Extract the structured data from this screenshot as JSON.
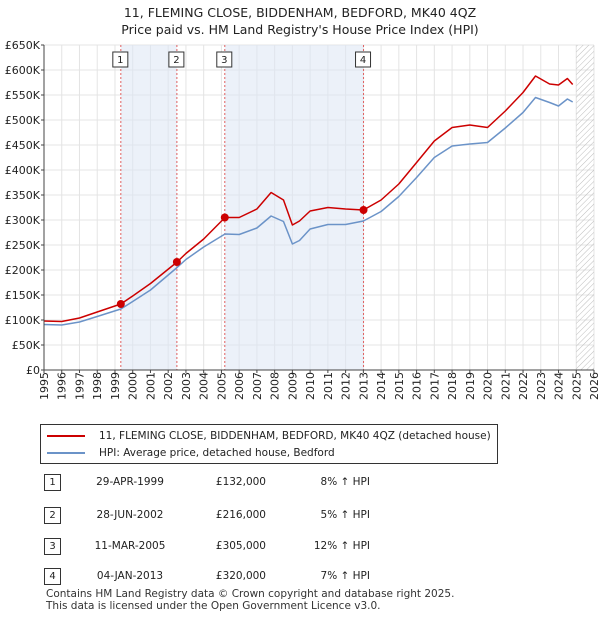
{
  "chart_data": {
    "type": "line",
    "title": "11, FLEMING CLOSE, BIDDENHAM, BEDFORD, MK40 4QZ",
    "subtitle": "Price paid vs. HM Land Registry's House Price Index (HPI)",
    "xlim": [
      1995,
      2026
    ],
    "ylim": [
      0,
      650000
    ],
    "x_ticks": [
      "1995",
      "1996",
      "1997",
      "1998",
      "1999",
      "2000",
      "2001",
      "2002",
      "2003",
      "2004",
      "2005",
      "2006",
      "2007",
      "2008",
      "2009",
      "2010",
      "2011",
      "2012",
      "2013",
      "2014",
      "2015",
      "2016",
      "2017",
      "2018",
      "2019",
      "2020",
      "2021",
      "2022",
      "2023",
      "2024",
      "2025",
      "2026"
    ],
    "y_ticks": [
      {
        "value": 0,
        "label": "£0"
      },
      {
        "value": 50000,
        "label": "£50K"
      },
      {
        "value": 100000,
        "label": "£100K"
      },
      {
        "value": 150000,
        "label": "£150K"
      },
      {
        "value": 200000,
        "label": "£200K"
      },
      {
        "value": 250000,
        "label": "£250K"
      },
      {
        "value": 300000,
        "label": "£300K"
      },
      {
        "value": 350000,
        "label": "£350K"
      },
      {
        "value": 400000,
        "label": "£400K"
      },
      {
        "value": 450000,
        "label": "£450K"
      },
      {
        "value": 500000,
        "label": "£500K"
      },
      {
        "value": 550000,
        "label": "£550K"
      },
      {
        "value": 600000,
        "label": "£600K"
      },
      {
        "value": 650000,
        "label": "£650K"
      }
    ],
    "future_from": 2025.0,
    "series": [
      {
        "name": "11, FLEMING CLOSE, BIDDENHAM, BEDFORD, MK40 4QZ (detached house)",
        "color": "#cc0000",
        "points": [
          [
            1995.0,
            98000
          ],
          [
            1996.0,
            97000
          ],
          [
            1997.0,
            104000
          ],
          [
            1998.0,
            116000
          ],
          [
            1999.33,
            132000
          ],
          [
            2000.0,
            148000
          ],
          [
            2001.0,
            173000
          ],
          [
            2002.5,
            216000
          ],
          [
            2003.0,
            233000
          ],
          [
            2004.0,
            262000
          ],
          [
            2005.2,
            305000
          ],
          [
            2006.0,
            305000
          ],
          [
            2007.0,
            322000
          ],
          [
            2007.8,
            355000
          ],
          [
            2008.5,
            340000
          ],
          [
            2009.0,
            290000
          ],
          [
            2009.4,
            298000
          ],
          [
            2010.0,
            318000
          ],
          [
            2011.0,
            325000
          ],
          [
            2012.0,
            322000
          ],
          [
            2013.0,
            320000
          ],
          [
            2014.0,
            340000
          ],
          [
            2015.0,
            372000
          ],
          [
            2016.0,
            415000
          ],
          [
            2017.0,
            458000
          ],
          [
            2018.0,
            485000
          ],
          [
            2019.0,
            490000
          ],
          [
            2020.0,
            485000
          ],
          [
            2021.0,
            518000
          ],
          [
            2022.0,
            555000
          ],
          [
            2022.7,
            588000
          ],
          [
            2023.5,
            572000
          ],
          [
            2024.0,
            570000
          ],
          [
            2024.5,
            583000
          ],
          [
            2024.8,
            571000
          ]
        ]
      },
      {
        "name": "HPI: Average price, detached house, Bedford",
        "color": "#6b93c8",
        "points": [
          [
            1995.0,
            91000
          ],
          [
            1996.0,
            90000
          ],
          [
            1997.0,
            96000
          ],
          [
            1998.0,
            107000
          ],
          [
            1999.33,
            122000
          ],
          [
            2000.0,
            137000
          ],
          [
            2001.0,
            160000
          ],
          [
            2002.5,
            205000
          ],
          [
            2003.0,
            221000
          ],
          [
            2004.0,
            246000
          ],
          [
            2005.2,
            272000
          ],
          [
            2006.0,
            271000
          ],
          [
            2007.0,
            284000
          ],
          [
            2007.8,
            308000
          ],
          [
            2008.5,
            297000
          ],
          [
            2009.0,
            252000
          ],
          [
            2009.4,
            259000
          ],
          [
            2010.0,
            282000
          ],
          [
            2011.0,
            291000
          ],
          [
            2012.0,
            291000
          ],
          [
            2013.0,
            298000
          ],
          [
            2014.0,
            317000
          ],
          [
            2015.0,
            347000
          ],
          [
            2016.0,
            385000
          ],
          [
            2017.0,
            425000
          ],
          [
            2018.0,
            448000
          ],
          [
            2019.0,
            452000
          ],
          [
            2020.0,
            455000
          ],
          [
            2021.0,
            484000
          ],
          [
            2022.0,
            515000
          ],
          [
            2022.7,
            545000
          ],
          [
            2023.5,
            535000
          ],
          [
            2024.0,
            528000
          ],
          [
            2024.5,
            542000
          ],
          [
            2024.8,
            536000
          ]
        ]
      }
    ],
    "sale_markers": [
      {
        "label": "1",
        "x": 1999.33,
        "y": 132000
      },
      {
        "label": "2",
        "x": 2002.49,
        "y": 216000
      },
      {
        "label": "3",
        "x": 2005.19,
        "y": 305000
      },
      {
        "label": "4",
        "x": 2013.01,
        "y": 320000
      }
    ],
    "legend": [
      {
        "label": "11, FLEMING CLOSE, BIDDENHAM, BEDFORD, MK40 4QZ (detached house)",
        "color": "#cc0000"
      },
      {
        "label": "HPI: Average price, detached house, Bedford",
        "color": "#6b93c8"
      }
    ]
  },
  "sales": [
    {
      "num": "1",
      "date": "29-APR-1999",
      "price": "£132,000",
      "hpi": "8% ↑ HPI"
    },
    {
      "num": "2",
      "date": "28-JUN-2002",
      "price": "£216,000",
      "hpi": "5% ↑ HPI"
    },
    {
      "num": "3",
      "date": "11-MAR-2005",
      "price": "£305,000",
      "hpi": "12% ↑ HPI"
    },
    {
      "num": "4",
      "date": "04-JAN-2013",
      "price": "£320,000",
      "hpi": "7% ↑ HPI"
    }
  ],
  "footer": {
    "line1": "Contains HM Land Registry data © Crown copyright and database right 2025.",
    "line2": "This data is licensed under the Open Government Licence v3.0."
  }
}
